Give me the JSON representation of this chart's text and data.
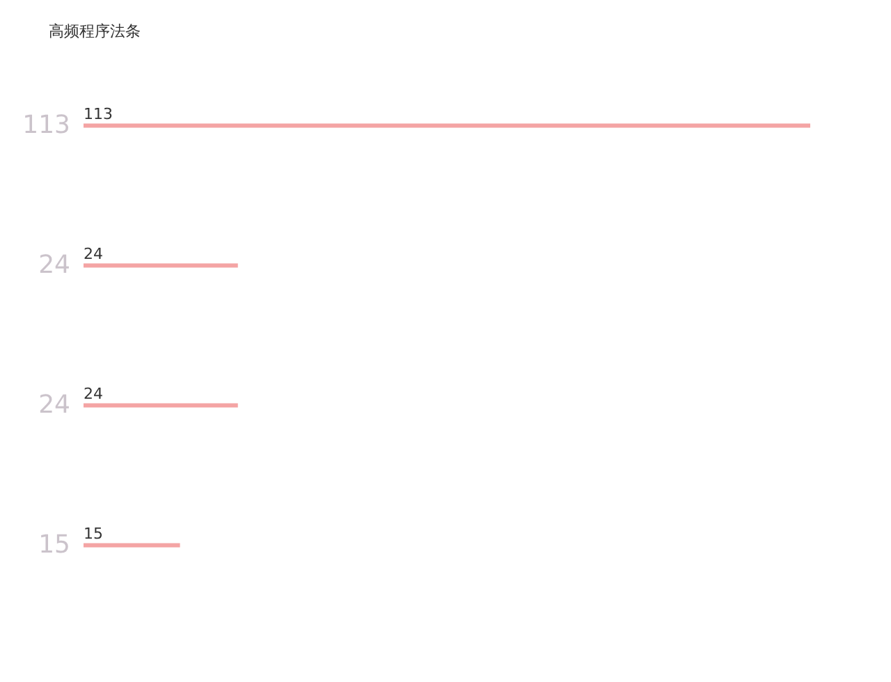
{
  "chart_data": {
    "type": "bar",
    "orientation": "horizontal",
    "title": "高频程序法条",
    "categories": [
      "113",
      "24",
      "24",
      "15"
    ],
    "values": [
      113,
      24,
      24,
      15
    ],
    "color": "#f4a4a4",
    "data_labels": true,
    "grid": false
  }
}
